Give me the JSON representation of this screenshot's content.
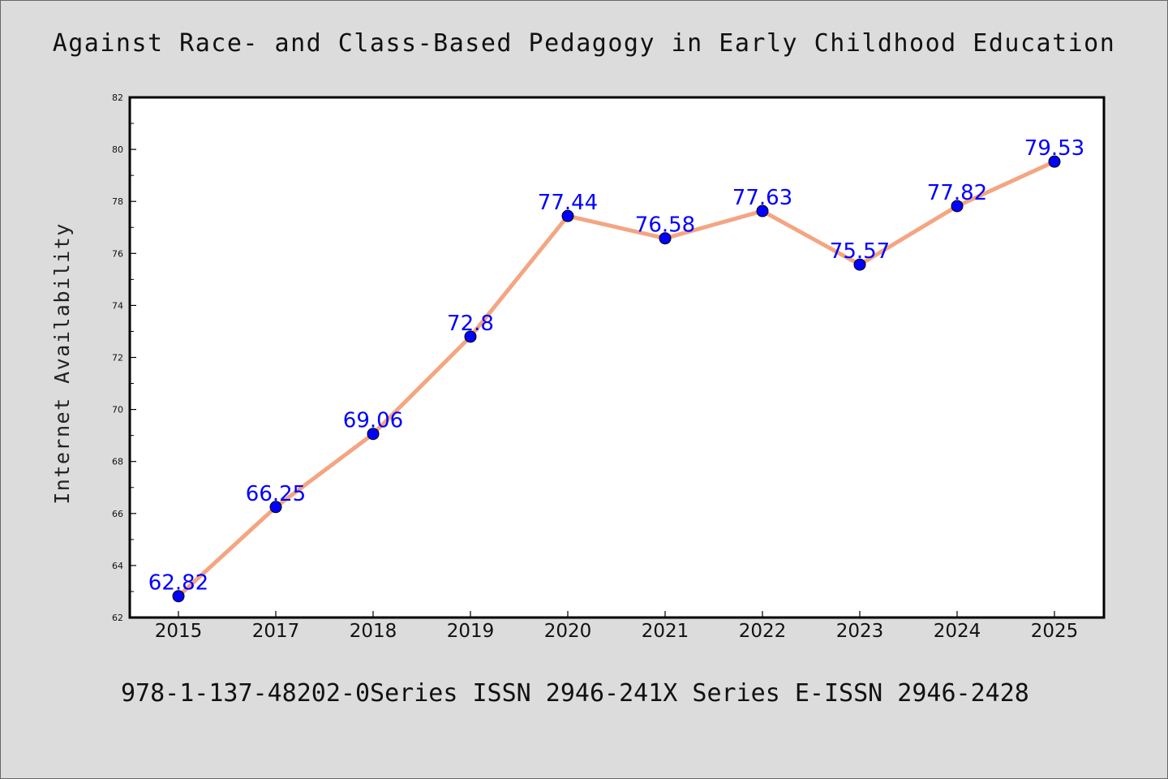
{
  "title": "Against Race- and Class-Based Pedagogy in Early Childhood Education",
  "footer": "978-1-137-48202-0Series ISSN 2946-241X Series E-ISSN 2946-2428",
  "colors": {
    "background": "#dcdcdc",
    "plot_background": "#ffffff",
    "line": "#f4a582",
    "marker": "#0000ff",
    "data_label": "#0000ff"
  },
  "chart_data": {
    "type": "line",
    "title": "Against Race- and Class-Based Pedagogy in Early Childhood Education",
    "xlabel": "",
    "ylabel": "Internet Availability",
    "categories": [
      "2015",
      "2017",
      "2018",
      "2019",
      "2020",
      "2021",
      "2022",
      "2023",
      "2024",
      "2025"
    ],
    "series": [
      {
        "values": [
          62.82,
          66.25,
          69.06,
          72.8,
          77.44,
          76.58,
          77.63,
          75.57,
          77.82,
          79.53
        ],
        "labels": [
          "62.82",
          "66.25",
          "69.06",
          "72.8",
          "77.44",
          "76.58",
          "77.63",
          "75.57",
          "77.82",
          "79.53"
        ]
      }
    ],
    "ylim": [
      62,
      82
    ],
    "yticks": [
      "62",
      "64",
      "66",
      "68",
      "70",
      "72",
      "74",
      "76",
      "78",
      "80",
      "82"
    ],
    "grid": false,
    "legend": "none"
  }
}
